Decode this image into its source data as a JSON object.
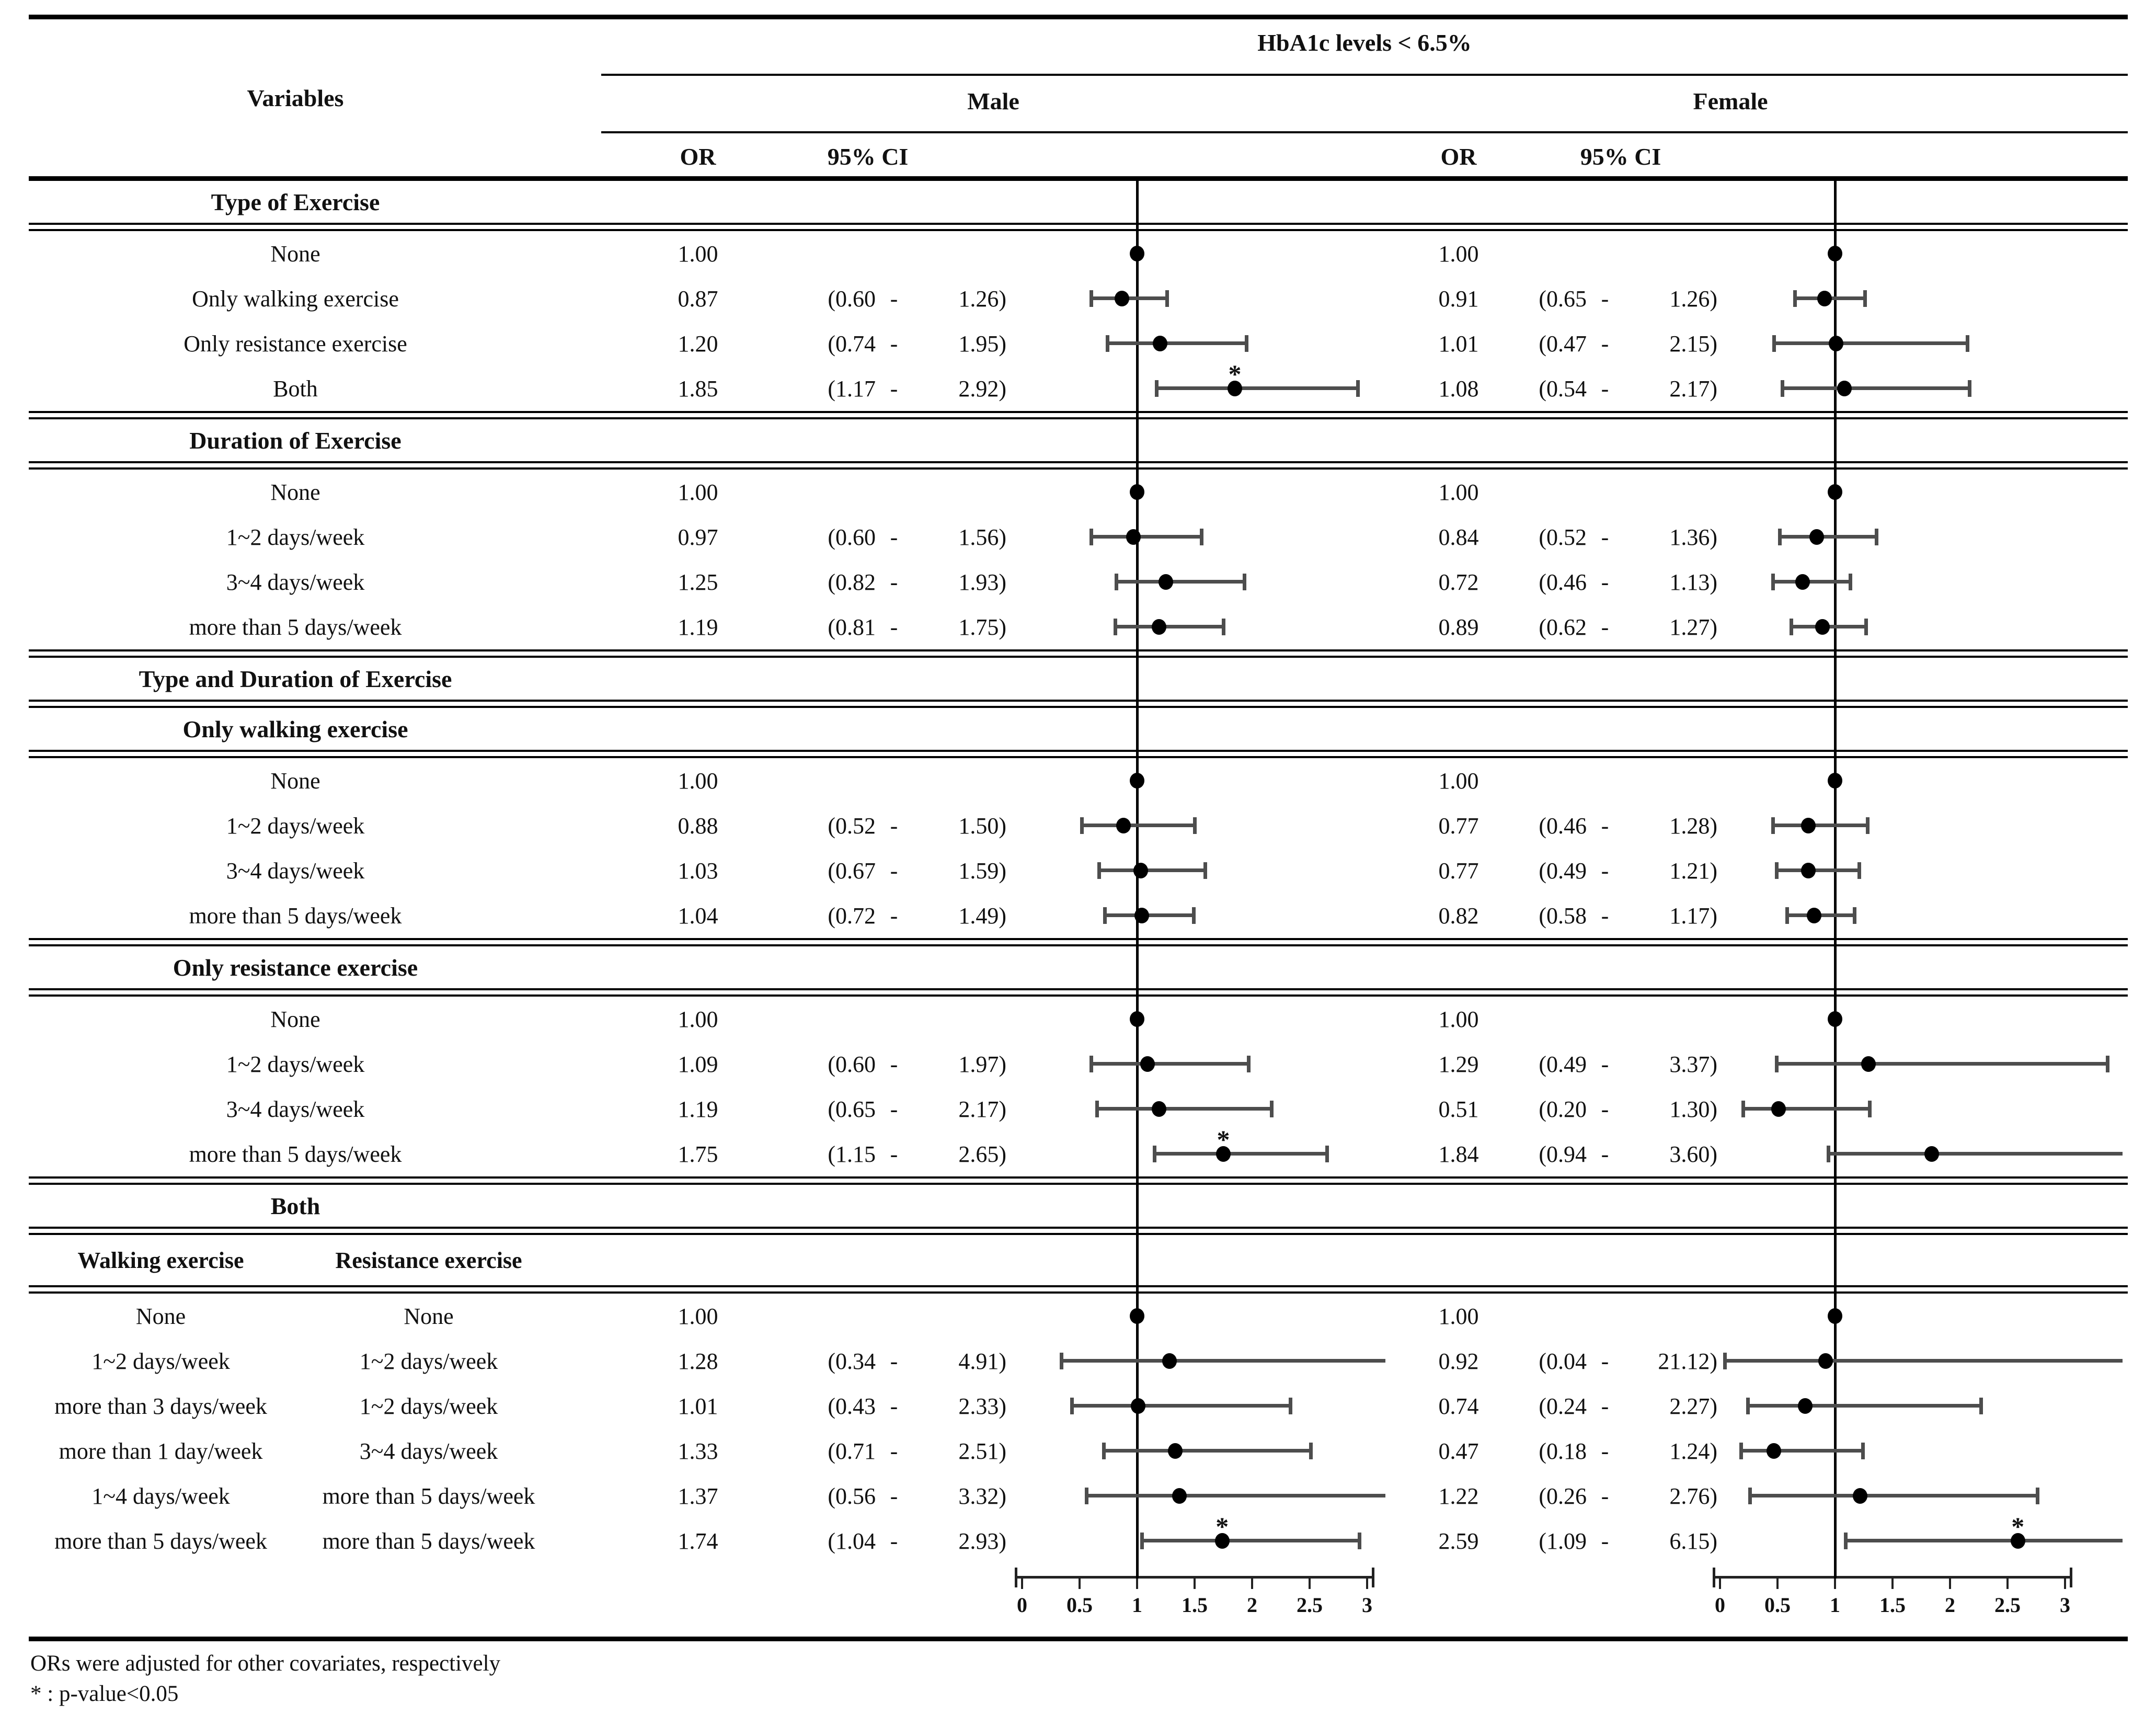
{
  "header": {
    "title": "HbA1c levels < 6.5%",
    "variables_label": "Variables",
    "male_label": "Male",
    "female_label": "Female",
    "or_label": "OR",
    "ci_label": "95% CI"
  },
  "axis": {
    "tick_labels": [
      "0",
      "0.5",
      "1",
      "1.5",
      "2",
      "2.5",
      "3"
    ]
  },
  "footnotes": {
    "line1": "ORs were adjusted for other covariates, respectively",
    "line2": "* : p-value<0.05"
  },
  "colors": {
    "bar": "#4d4d4d",
    "dot": "#000000",
    "line": "#000000",
    "text": "#111111"
  },
  "sections": [
    {
      "header": "Type of Exercise",
      "rows": [
        {
          "label": "None",
          "m": {
            "or": "1.00"
          },
          "f": {
            "or": "1.00"
          }
        },
        {
          "label": "Only walking exercise",
          "m": {
            "or": "0.87",
            "lo": "0.60",
            "hi": "1.26"
          },
          "f": {
            "or": "0.91",
            "lo": "0.65",
            "hi": "1.26"
          }
        },
        {
          "label": "Only resistance exercise",
          "m": {
            "or": "1.20",
            "lo": "0.74",
            "hi": "1.95"
          },
          "f": {
            "or": "1.01",
            "lo": "0.47",
            "hi": "2.15"
          }
        },
        {
          "label": "Both",
          "m": {
            "or": "1.85",
            "lo": "1.17",
            "hi": "2.92",
            "sig": true
          },
          "f": {
            "or": "1.08",
            "lo": "0.54",
            "hi": "2.17"
          }
        }
      ]
    },
    {
      "header": "Duration of Exercise",
      "rows": [
        {
          "label": "None",
          "m": {
            "or": "1.00"
          },
          "f": {
            "or": "1.00"
          }
        },
        {
          "label": "1~2 days/week",
          "m": {
            "or": "0.97",
            "lo": "0.60",
            "hi": "1.56"
          },
          "f": {
            "or": "0.84",
            "lo": "0.52",
            "hi": "1.36"
          }
        },
        {
          "label": "3~4 days/week",
          "m": {
            "or": "1.25",
            "lo": "0.82",
            "hi": "1.93"
          },
          "f": {
            "or": "0.72",
            "lo": "0.46",
            "hi": "1.13"
          }
        },
        {
          "label": "more than 5 days/week",
          "m": {
            "or": "1.19",
            "lo": "0.81",
            "hi": "1.75"
          },
          "f": {
            "or": "0.89",
            "lo": "0.62",
            "hi": "1.27"
          }
        }
      ]
    },
    {
      "header": "Type and Duration of Exercise",
      "rows": []
    },
    {
      "header": "Only walking exercise",
      "rows": [
        {
          "label": "None",
          "m": {
            "or": "1.00"
          },
          "f": {
            "or": "1.00"
          }
        },
        {
          "label": "1~2 days/week",
          "m": {
            "or": "0.88",
            "lo": "0.52",
            "hi": "1.50"
          },
          "f": {
            "or": "0.77",
            "lo": "0.46",
            "hi": "1.28"
          }
        },
        {
          "label": "3~4 days/week",
          "m": {
            "or": "1.03",
            "lo": "0.67",
            "hi": "1.59"
          },
          "f": {
            "or": "0.77",
            "lo": "0.49",
            "hi": "1.21"
          }
        },
        {
          "label": "more than 5 days/week",
          "m": {
            "or": "1.04",
            "lo": "0.72",
            "hi": "1.49"
          },
          "f": {
            "or": "0.82",
            "lo": "0.58",
            "hi": "1.17"
          }
        }
      ]
    },
    {
      "header": "Only resistance exercise",
      "rows": [
        {
          "label": "None",
          "m": {
            "or": "1.00"
          },
          "f": {
            "or": "1.00"
          }
        },
        {
          "label": "1~2 days/week",
          "m": {
            "or": "1.09",
            "lo": "0.60",
            "hi": "1.97"
          },
          "f": {
            "or": "1.29",
            "lo": "0.49",
            "hi": "3.37"
          }
        },
        {
          "label": "3~4 days/week",
          "m": {
            "or": "1.19",
            "lo": "0.65",
            "hi": "2.17"
          },
          "f": {
            "or": "0.51",
            "lo": "0.20",
            "hi": "1.30"
          }
        },
        {
          "label": "more than 5 days/week",
          "m": {
            "or": "1.75",
            "lo": "1.15",
            "hi": "2.65",
            "sig": true
          },
          "f": {
            "or": "1.84",
            "lo": "0.94",
            "hi": "3.60"
          }
        }
      ]
    },
    {
      "header": "Both",
      "columns": {
        "col1": "Walking exercise",
        "col2": "Resistance exercise"
      },
      "rows": [
        {
          "label": "None",
          "label2": "None",
          "m": {
            "or": "1.00"
          },
          "f": {
            "or": "1.00"
          }
        },
        {
          "label": "1~2 days/week",
          "label2": "1~2 days/week",
          "m": {
            "or": "1.28",
            "lo": "0.34",
            "hi": "4.91"
          },
          "f": {
            "or": "0.92",
            "lo": "0.04",
            "hi": "21.12"
          }
        },
        {
          "label": "more than 3 days/week",
          "label2": "1~2 days/week",
          "m": {
            "or": "1.01",
            "lo": "0.43",
            "hi": "2.33"
          },
          "f": {
            "or": "0.74",
            "lo": "0.24",
            "hi": "2.27"
          }
        },
        {
          "label": "more than 1 day/week",
          "label2": "3~4 days/week",
          "m": {
            "or": "1.33",
            "lo": "0.71",
            "hi": "2.51"
          },
          "f": {
            "or": "0.47",
            "lo": "0.18",
            "hi": "1.24"
          }
        },
        {
          "label": "1~4 days/week",
          "label2": "more than 5 days/week",
          "m": {
            "or": "1.37",
            "lo": "0.56",
            "hi": "3.32"
          },
          "f": {
            "or": "1.22",
            "lo": "0.26",
            "hi": "2.76"
          }
        },
        {
          "label": "more than 5 days/week",
          "label2": "more than 5 days/week",
          "m": {
            "or": "1.74",
            "lo": "1.04",
            "hi": "2.93",
            "sig": true
          },
          "f": {
            "or": "2.59",
            "lo": "1.09",
            "hi": "6.15",
            "sig": true
          }
        }
      ]
    }
  ],
  "chart_data": {
    "type": "forest",
    "title": "HbA1c levels < 6.5%",
    "panels": [
      "Male",
      "Female"
    ],
    "xlim": [
      0,
      3
    ],
    "xticks": [
      0,
      0.5,
      1,
      1.5,
      2,
      2.5,
      3
    ],
    "reference_line": 1.0,
    "legend_note": "values with hi > 3 are clipped at right edge of plot",
    "rows": [
      {
        "section": "Type of Exercise",
        "label": "None",
        "male": {
          "or": 1.0
        },
        "female": {
          "or": 1.0
        }
      },
      {
        "section": "Type of Exercise",
        "label": "Only walking exercise",
        "male": {
          "or": 0.87,
          "ci": [
            0.6,
            1.26
          ]
        },
        "female": {
          "or": 0.91,
          "ci": [
            0.65,
            1.26
          ]
        }
      },
      {
        "section": "Type of Exercise",
        "label": "Only resistance exercise",
        "male": {
          "or": 1.2,
          "ci": [
            0.74,
            1.95
          ]
        },
        "female": {
          "or": 1.01,
          "ci": [
            0.47,
            2.15
          ]
        }
      },
      {
        "section": "Type of Exercise",
        "label": "Both",
        "male": {
          "or": 1.85,
          "ci": [
            1.17,
            2.92
          ],
          "sig": true
        },
        "female": {
          "or": 1.08,
          "ci": [
            0.54,
            2.17
          ]
        }
      },
      {
        "section": "Duration of Exercise",
        "label": "None",
        "male": {
          "or": 1.0
        },
        "female": {
          "or": 1.0
        }
      },
      {
        "section": "Duration of Exercise",
        "label": "1~2 days/week",
        "male": {
          "or": 0.97,
          "ci": [
            0.6,
            1.56
          ]
        },
        "female": {
          "or": 0.84,
          "ci": [
            0.52,
            1.36
          ]
        }
      },
      {
        "section": "Duration of Exercise",
        "label": "3~4 days/week",
        "male": {
          "or": 1.25,
          "ci": [
            0.82,
            1.93
          ]
        },
        "female": {
          "or": 0.72,
          "ci": [
            0.46,
            1.13
          ]
        }
      },
      {
        "section": "Duration of Exercise",
        "label": "more than 5 days/week",
        "male": {
          "or": 1.19,
          "ci": [
            0.81,
            1.75
          ]
        },
        "female": {
          "or": 0.89,
          "ci": [
            0.62,
            1.27
          ]
        }
      },
      {
        "section": "Type and Duration of Exercise - Only walking exercise",
        "label": "None",
        "male": {
          "or": 1.0
        },
        "female": {
          "or": 1.0
        }
      },
      {
        "section": "Type and Duration of Exercise - Only walking exercise",
        "label": "1~2 days/week",
        "male": {
          "or": 0.88,
          "ci": [
            0.52,
            1.5
          ]
        },
        "female": {
          "or": 0.77,
          "ci": [
            0.46,
            1.28
          ]
        }
      },
      {
        "section": "Type and Duration of Exercise - Only walking exercise",
        "label": "3~4 days/week",
        "male": {
          "or": 1.03,
          "ci": [
            0.67,
            1.59
          ]
        },
        "female": {
          "or": 0.77,
          "ci": [
            0.49,
            1.21
          ]
        }
      },
      {
        "section": "Type and Duration of Exercise - Only walking exercise",
        "label": "more than 5 days/week",
        "male": {
          "or": 1.04,
          "ci": [
            0.72,
            1.49
          ]
        },
        "female": {
          "or": 0.82,
          "ci": [
            0.58,
            1.17
          ]
        }
      },
      {
        "section": "Type and Duration of Exercise - Only resistance exercise",
        "label": "None",
        "male": {
          "or": 1.0
        },
        "female": {
          "or": 1.0
        }
      },
      {
        "section": "Type and Duration of Exercise - Only resistance exercise",
        "label": "1~2 days/week",
        "male": {
          "or": 1.09,
          "ci": [
            0.6,
            1.97
          ]
        },
        "female": {
          "or": 1.29,
          "ci": [
            0.49,
            3.37
          ]
        }
      },
      {
        "section": "Type and Duration of Exercise - Only resistance exercise",
        "label": "3~4 days/week",
        "male": {
          "or": 1.19,
          "ci": [
            0.65,
            2.17
          ]
        },
        "female": {
          "or": 0.51,
          "ci": [
            0.2,
            1.3
          ]
        }
      },
      {
        "section": "Type and Duration of Exercise - Only resistance exercise",
        "label": "more than 5 days/week",
        "male": {
          "or": 1.75,
          "ci": [
            1.15,
            2.65
          ],
          "sig": true
        },
        "female": {
          "or": 1.84,
          "ci": [
            0.94,
            3.6
          ]
        }
      },
      {
        "section": "Type and Duration of Exercise - Both",
        "label": "Walking: None / Resistance: None",
        "male": {
          "or": 1.0
        },
        "female": {
          "or": 1.0
        }
      },
      {
        "section": "Type and Duration of Exercise - Both",
        "label": "Walking: 1~2 days/week / Resistance: 1~2 days/week",
        "male": {
          "or": 1.28,
          "ci": [
            0.34,
            4.91
          ]
        },
        "female": {
          "or": 0.92,
          "ci": [
            0.04,
            21.12
          ]
        }
      },
      {
        "section": "Type and Duration of Exercise - Both",
        "label": "Walking: more than 3 days/week / Resistance: 1~2 days/week",
        "male": {
          "or": 1.01,
          "ci": [
            0.43,
            2.33
          ]
        },
        "female": {
          "or": 0.74,
          "ci": [
            0.24,
            2.27
          ]
        }
      },
      {
        "section": "Type and Duration of Exercise - Both",
        "label": "Walking: more than 1 day/week / Resistance: 3~4 days/week",
        "male": {
          "or": 1.33,
          "ci": [
            0.71,
            2.51
          ]
        },
        "female": {
          "or": 0.47,
          "ci": [
            0.18,
            1.24
          ]
        }
      },
      {
        "section": "Type and Duration of Exercise - Both",
        "label": "Walking: 1~4 days/week / Resistance: more than 5 days/week",
        "male": {
          "or": 1.37,
          "ci": [
            0.56,
            3.32
          ]
        },
        "female": {
          "or": 1.22,
          "ci": [
            0.26,
            2.76
          ]
        }
      },
      {
        "section": "Type and Duration of Exercise - Both",
        "label": "Walking: more than 5 days/week / Resistance: more than 5 days/week",
        "male": {
          "or": 1.74,
          "ci": [
            1.04,
            2.93
          ],
          "sig": true
        },
        "female": {
          "or": 2.59,
          "ci": [
            1.09,
            6.15
          ],
          "sig": true
        }
      }
    ]
  }
}
